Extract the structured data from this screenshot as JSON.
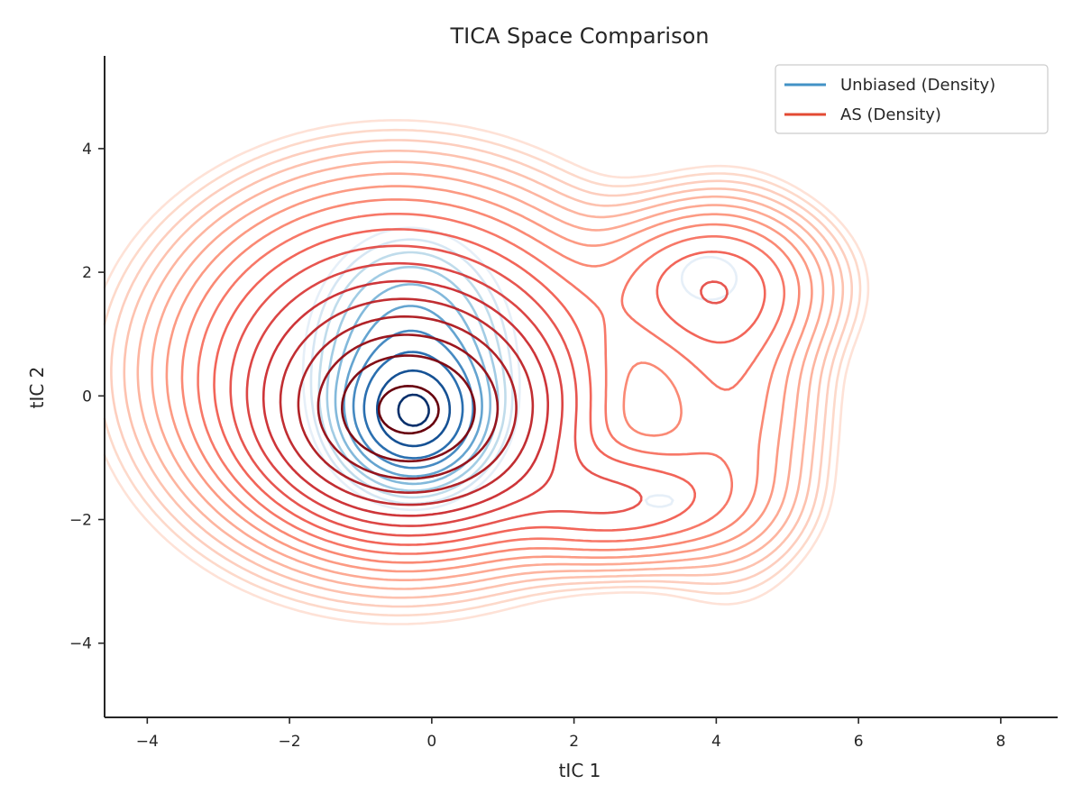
{
  "chart_data": {
    "type": "contour",
    "title": "TICA Space Comparison",
    "xlabel": "tIC 1",
    "ylabel": "tIC 2",
    "xlim": [
      -4.6,
      8.8
    ],
    "ylim": [
      -5.2,
      5.5
    ],
    "xticks": [
      -4,
      -2,
      0,
      2,
      4,
      6,
      8
    ],
    "yticks": [
      -4,
      -2,
      0,
      2,
      4
    ],
    "grid": false,
    "legend_position": "top-right",
    "series": [
      {
        "name": "Unbiased (Density)",
        "legend_color": "#4292c6",
        "colormap": "Blues",
        "components": [
          {
            "center": [
              -0.25,
              -0.3
            ],
            "sigma": [
              0.5,
              0.55
            ],
            "weight": 1.0
          },
          {
            "center": [
              -0.3,
              0.6
            ],
            "sigma": [
              0.7,
              1.0
            ],
            "weight": 0.35
          },
          {
            "center": [
              3.9,
              1.9
            ],
            "sigma": [
              0.5,
              0.45
            ],
            "weight": 0.05
          },
          {
            "center": [
              3.2,
              -1.7
            ],
            "sigma": [
              0.5,
              0.25
            ],
            "weight": 0.04
          }
        ],
        "levels": 10,
        "level_fraction_min": 0.03
      },
      {
        "name": "AS (Density)",
        "legend_color": "#e34a33",
        "colormap": "Reds",
        "components": [
          {
            "center": [
              -0.3,
              -0.3
            ],
            "sigma": [
              0.95,
              0.85
            ],
            "weight": 1.0
          },
          {
            "center": [
              -0.5,
              0.4
            ],
            "sigma": [
              1.5,
              1.4
            ],
            "weight": 0.35
          },
          {
            "center": [
              2.6,
              -1.7
            ],
            "sigma": [
              1.0,
              0.55
            ],
            "weight": 0.12
          },
          {
            "center": [
              3.9,
              1.8
            ],
            "sigma": [
              0.9,
              0.7
            ],
            "weight": 0.1
          },
          {
            "center": [
              4.2,
              0.0
            ],
            "sigma": [
              0.7,
              1.5
            ],
            "weight": 0.06
          }
        ],
        "levels": 18,
        "level_fraction_min": 0.004
      }
    ]
  }
}
